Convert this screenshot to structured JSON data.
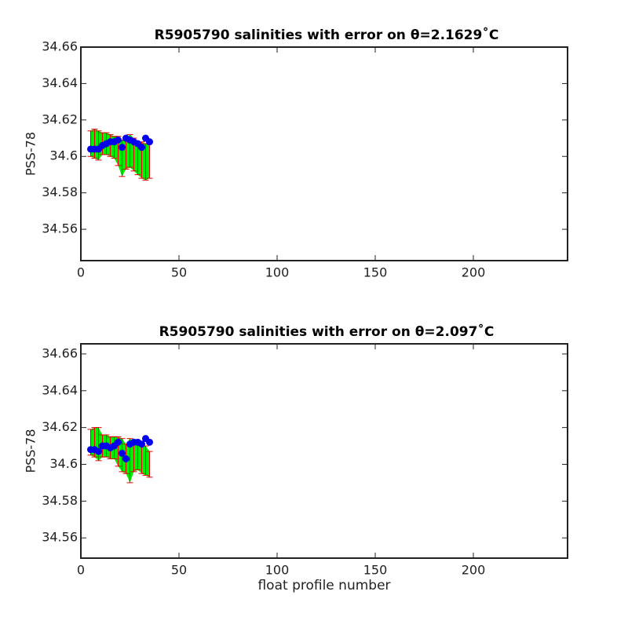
{
  "chart_data": [
    {
      "type": "errorbar",
      "title": "R5905790 salinities with error on θ=2.1629˚C",
      "ylabel": "PSS-78",
      "x": [
        5,
        7,
        9,
        11,
        13,
        15,
        17,
        19,
        21,
        23,
        25,
        27,
        29,
        31,
        33,
        35
      ],
      "series": [
        {
          "color": "#00ee00",
          "error_color": "#dd0000",
          "values": [
            34.607,
            34.607,
            34.606,
            34.607,
            34.607,
            34.606,
            34.605,
            34.603,
            34.599,
            34.601,
            34.603,
            34.601,
            34.599,
            34.598,
            34.597,
            34.598
          ],
          "errors": [
            0.007,
            0.008,
            0.008,
            0.006,
            0.006,
            0.006,
            0.006,
            0.008,
            0.01,
            0.008,
            0.009,
            0.009,
            0.009,
            0.01,
            0.01,
            0.01
          ]
        },
        {
          "color": "#0000ee",
          "values": [
            34.604,
            34.604,
            34.604,
            34.606,
            34.607,
            34.608,
            34.608,
            34.609,
            34.605,
            34.61,
            34.609,
            34.608,
            34.607,
            34.605,
            34.61,
            34.608
          ]
        }
      ],
      "xlim": [
        0,
        248
      ],
      "xticks": [
        0,
        50,
        100,
        150,
        200
      ],
      "ylim": [
        34.5428,
        34.66
      ],
      "yticks": [
        34.56,
        34.58,
        34.6,
        34.62,
        34.64,
        34.66
      ]
    },
    {
      "type": "errorbar",
      "title": "R5905790 salinities with error on θ=2.097˚C",
      "ylabel": "PSS-78",
      "xlabel": "float profile number",
      "x": [
        5,
        7,
        9,
        11,
        13,
        15,
        17,
        19,
        21,
        23,
        25,
        27,
        29,
        31,
        33,
        35
      ],
      "series": [
        {
          "color": "#00ee00",
          "error_color": "#dd0000",
          "values": [
            34.612,
            34.612,
            34.611,
            34.61,
            34.61,
            34.609,
            34.609,
            34.607,
            34.605,
            34.603,
            34.602,
            34.604,
            34.605,
            34.603,
            34.602,
            34.6
          ],
          "errors": [
            0.007,
            0.008,
            0.009,
            0.006,
            0.006,
            0.006,
            0.006,
            0.008,
            0.009,
            0.008,
            0.012,
            0.008,
            0.008,
            0.008,
            0.008,
            0.007
          ]
        },
        {
          "color": "#0000ee",
          "values": [
            34.608,
            34.608,
            34.607,
            34.61,
            34.61,
            34.609,
            34.61,
            34.612,
            34.606,
            34.603,
            34.611,
            34.612,
            34.612,
            34.611,
            34.614,
            34.612
          ]
        }
      ],
      "xlim": [
        0,
        248
      ],
      "xticks": [
        0,
        50,
        100,
        150,
        200
      ],
      "ylim": [
        34.549,
        34.6655
      ],
      "yticks": [
        34.56,
        34.58,
        34.6,
        34.62,
        34.64,
        34.66
      ]
    }
  ]
}
